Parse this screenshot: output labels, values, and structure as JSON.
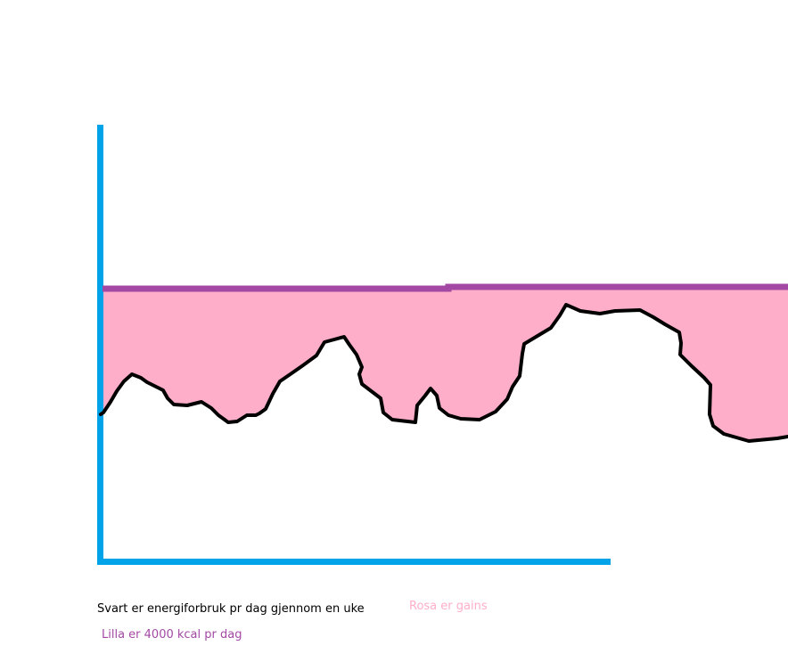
{
  "legend": {
    "black": "Svart er energiforbruk pr dag gjennom en uke",
    "pink": "Rosa er gains",
    "purple": "Lilla er 4000 kcal pr dag"
  },
  "colors": {
    "axes": "#00a2e8",
    "intake_line": "#a349a4",
    "gain_fill": "#ffaec9",
    "consumption_line": "#000000",
    "pink_text": "#ffaec9",
    "purple_text": "#a349a4",
    "black_text": "#000000"
  },
  "chart_data": {
    "type": "area",
    "series": [
      {
        "name": "Lilla er 4000 kcal pr dag",
        "role": "intake_line"
      },
      {
        "name": "Svart er energiforbruk pr dag gjennom en uke",
        "role": "consumption_line"
      },
      {
        "name": "Rosa er gains",
        "role": "gain_fill"
      }
    ]
  }
}
